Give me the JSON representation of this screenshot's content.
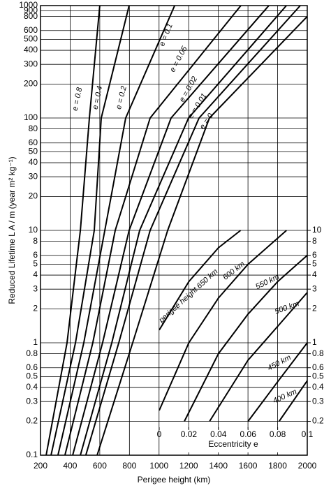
{
  "chart_data": [
    {
      "type": "line",
      "xlabel": "Perigee height (km)",
      "ylabel": "Reduced Lifetime  L A / m  (year m² kg⁻¹)",
      "xlim": [
        200,
        2000
      ],
      "xticks": [
        200,
        400,
        600,
        800,
        1000,
        1200,
        1400,
        1600,
        1800,
        2000
      ],
      "ylim": [
        0.1,
        1000
      ],
      "log_y": true,
      "grid": true,
      "yticks": [
        0.1,
        0.2,
        0.3,
        0.4,
        0.5,
        0.6,
        0.8,
        1,
        2,
        3,
        4,
        5,
        6,
        8,
        10,
        20,
        30,
        40,
        50,
        60,
        80,
        100,
        200,
        300,
        400,
        500,
        600,
        800,
        900,
        1000
      ],
      "series": [
        {
          "name": "e = 0.8",
          "color": "#000000",
          "x": [
            238,
            379,
            469,
            530,
            600
          ],
          "values": [
            0.1,
            1,
            10,
            100,
            1000
          ]
        },
        {
          "name": "e = 0.4",
          "color": "#000000",
          "x": [
            271,
            436,
            563,
            610,
            798
          ],
          "values": [
            0.1,
            1,
            10,
            100,
            1000
          ]
        },
        {
          "name": "e = 0.2",
          "color": "#000000",
          "x": [
            318,
            492,
            634,
            775,
            1105
          ],
          "values": [
            0.1,
            1,
            10,
            100,
            1000
          ]
        },
        {
          "name": "e = 0.1",
          "color": "#000000",
          "x": [
            365,
            553,
            704,
            940,
            1552
          ],
          "values": [
            0.1,
            1,
            10,
            100,
            1000
          ]
        },
        {
          "name": "e = 0.05",
          "color": "#000000",
          "x": [
            417,
            619,
            798,
            1081,
            1741
          ],
          "values": [
            0.1,
            1,
            10,
            100,
            1000
          ]
        },
        {
          "name": "e = 0.02",
          "color": "#000000",
          "x": [
            469,
            681,
            869,
            1199,
            1859
          ],
          "values": [
            0.1,
            1,
            10,
            100,
            1000
          ]
        },
        {
          "name": "e = 0.01",
          "color": "#000000",
          "x": [
            506,
            728,
            940,
            1270,
            1953
          ],
          "values": [
            0.1,
            1,
            10,
            100,
            1000
          ]
        },
        {
          "name": "e = 0",
          "color": "#000000",
          "x": [
            582,
            822,
            1058,
            1340,
            2000
          ],
          "values": [
            0.1,
            1,
            10,
            100,
            800
          ]
        }
      ]
    },
    {
      "type": "line",
      "xlabel": "Eccentricity e",
      "xlim": [
        0,
        0.1
      ],
      "xticks": [
        0,
        0.02,
        0.04,
        0.06,
        0.08,
        0.1
      ],
      "y2lim": [
        0.1,
        1000
      ],
      "log_y": true,
      "y2ticks": [
        0.2,
        0.3,
        0.4,
        0.5,
        0.6,
        0.8,
        1,
        2,
        3,
        4,
        5,
        6,
        8,
        10
      ],
      "series": [
        {
          "name": "perigee height 650 km",
          "color": "#000000",
          "axis": "y2",
          "x": [
            0,
            0.02,
            0.04,
            0.055
          ],
          "values": [
            1.3,
            3.5,
            7,
            10
          ]
        },
        {
          "name": "600 km",
          "color": "#000000",
          "axis": "y2",
          "x": [
            0,
            0.02,
            0.04,
            0.06,
            0.086
          ],
          "values": [
            0.25,
            1,
            2.5,
            5,
            10
          ]
        },
        {
          "name": "550 km",
          "color": "#000000",
          "axis": "y2",
          "x": [
            0.017,
            0.04,
            0.06,
            0.08,
            0.1
          ],
          "values": [
            0.2,
            0.8,
            1.8,
            3.5,
            6
          ]
        },
        {
          "name": "500 km",
          "color": "#000000",
          "axis": "y2",
          "x": [
            0.034,
            0.06,
            0.08,
            0.1
          ],
          "values": [
            0.2,
            0.7,
            1.4,
            2.8
          ]
        },
        {
          "name": "450 km",
          "color": "#000000",
          "axis": "y2",
          "x": [
            0.06,
            0.08,
            0.1
          ],
          "values": [
            0.2,
            0.45,
            1
          ]
        },
        {
          "name": "400 km",
          "color": "#000000",
          "axis": "y2",
          "x": [
            0.081,
            0.1
          ],
          "values": [
            0.2,
            0.46
          ]
        }
      ]
    }
  ]
}
